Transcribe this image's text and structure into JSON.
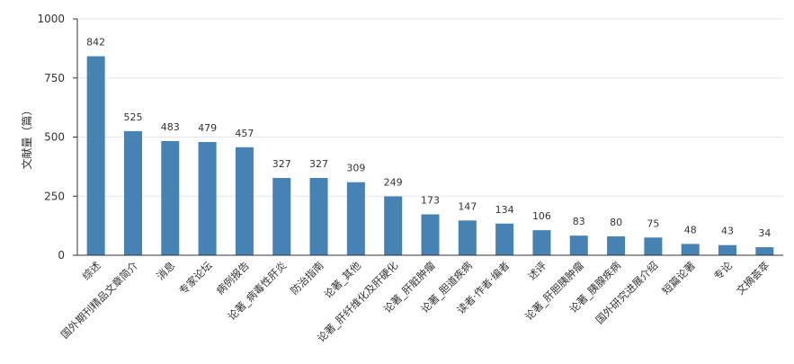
{
  "chart_data": {
    "type": "bar",
    "ylabel": "文献量（篇）",
    "xlabel": "",
    "title": "",
    "ylim": [
      0,
      1000
    ],
    "yticks": [
      0,
      250,
      500,
      750,
      1000
    ],
    "grid": true,
    "bar_color": "#4682b4",
    "categories": [
      "综述",
      "国外期刊精品文章简介",
      "消息",
      "专家论坛",
      "病例报告",
      "论著_病毒性肝炎",
      "防治指南",
      "论著_其他",
      "论著_肝纤维化及肝硬化",
      "论著_肝脏肿瘤",
      "论著_胆道疾病",
      "读者·作者·编者",
      "述评",
      "论著_肝胆胰肿瘤",
      "论著_胰腺疾病",
      "国外研究进展介绍",
      "短篇论著",
      "专论",
      "文摘荟萃"
    ],
    "values": [
      842,
      525,
      483,
      479,
      457,
      327,
      327,
      309,
      249,
      173,
      147,
      134,
      106,
      83,
      80,
      75,
      48,
      43,
      34
    ]
  }
}
